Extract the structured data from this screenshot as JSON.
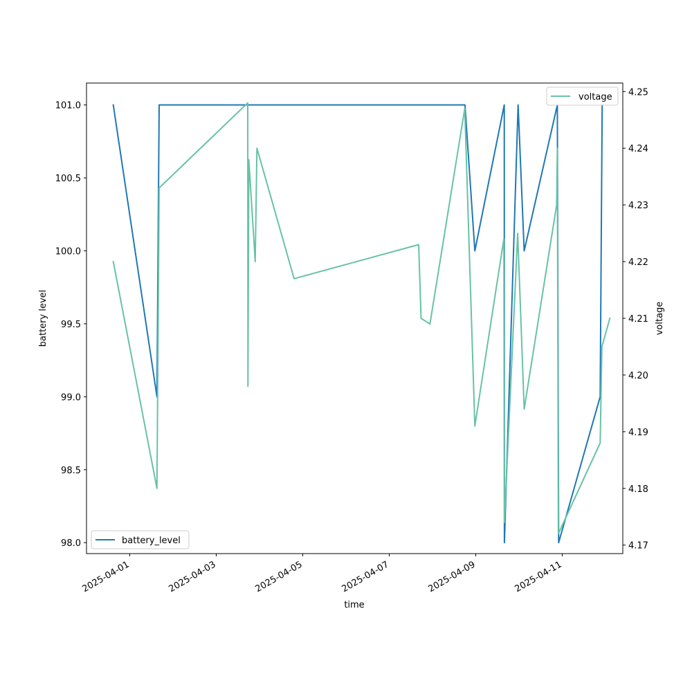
{
  "chart_data": {
    "type": "line",
    "xlabel": "time",
    "ylabel_left": "battery level",
    "ylabel_right": "voltage",
    "x_ticks": [
      "2025-04-01",
      "2025-04-03",
      "2025-04-05",
      "2025-04-07",
      "2025-04-09",
      "2025-04-11"
    ],
    "y_left_ticks": [
      "98.0",
      "98.5",
      "99.0",
      "99.5",
      "100.0",
      "100.5",
      "101.0"
    ],
    "y_right_ticks": [
      "4.17",
      "4.18",
      "4.19",
      "4.20",
      "4.21",
      "4.22",
      "4.23",
      "4.24",
      "4.25"
    ],
    "ylim_left": [
      97.925,
      101.15
    ],
    "ylim_right": [
      4.1685,
      4.2515
    ],
    "xlim": [
      "2025-03-31 00:00",
      "2025-04-12 09:36"
    ],
    "grid": false,
    "series": [
      {
        "name": "battery_level",
        "axis": "left",
        "color": "#1f77b4",
        "legend_position": "lower left",
        "points": [
          [
            "2025-03-31 14:52",
            101
          ],
          [
            "2025-04-01 15:05",
            99
          ],
          [
            "2025-04-01 16:19",
            101
          ],
          [
            "2025-04-03 17:28",
            101
          ],
          [
            "2025-04-03 18:05",
            101
          ],
          [
            "2025-04-08 18:00",
            101
          ],
          [
            "2025-04-08 23:31",
            100
          ],
          [
            "2025-04-09 15:50",
            101
          ],
          [
            "2025-04-09 15:55",
            98
          ],
          [
            "2025-04-09 23:31",
            101
          ],
          [
            "2025-04-10 02:52",
            100
          ],
          [
            "2025-04-10 21:17",
            101
          ],
          [
            "2025-04-10 22:00",
            98
          ],
          [
            "2025-04-11 21:02",
            99
          ],
          [
            "2025-04-11 22:10",
            101
          ]
        ]
      },
      {
        "name": "voltage",
        "axis": "right",
        "color": "#66c2a5",
        "legend_position": "upper right",
        "points": [
          [
            "2025-03-31 14:52",
            4.22
          ],
          [
            "2025-04-01 15:05",
            4.18
          ],
          [
            "2025-04-01 16:19",
            4.233
          ],
          [
            "2025-04-03 17:28",
            4.248
          ],
          [
            "2025-04-03 17:35",
            4.198
          ],
          [
            "2025-04-03 18:05",
            4.238
          ],
          [
            "2025-04-03 21:36",
            4.22
          ],
          [
            "2025-04-03 22:34",
            4.24
          ],
          [
            "2025-04-04 19:12",
            4.217
          ],
          [
            "2025-04-07 16:19",
            4.223
          ],
          [
            "2025-04-07 17:40",
            4.21
          ],
          [
            "2025-04-07 22:34",
            4.209
          ],
          [
            "2025-04-08 17:54",
            4.247
          ],
          [
            "2025-04-08 23:31",
            4.191
          ],
          [
            "2025-04-09 15:36",
            4.224
          ],
          [
            "2025-04-09 15:55",
            4.174
          ],
          [
            "2025-04-09 23:17",
            4.225
          ],
          [
            "2025-04-10 02:52",
            4.194
          ],
          [
            "2025-04-10 20:53",
            4.23
          ],
          [
            "2025-04-10 21:17",
            4.24
          ],
          [
            "2025-04-10 21:50",
            4.172
          ],
          [
            "2025-04-11 21:02",
            4.188
          ],
          [
            "2025-04-11 22:00",
            4.205
          ],
          [
            "2025-04-12 02:24",
            4.21
          ]
        ]
      }
    ]
  }
}
